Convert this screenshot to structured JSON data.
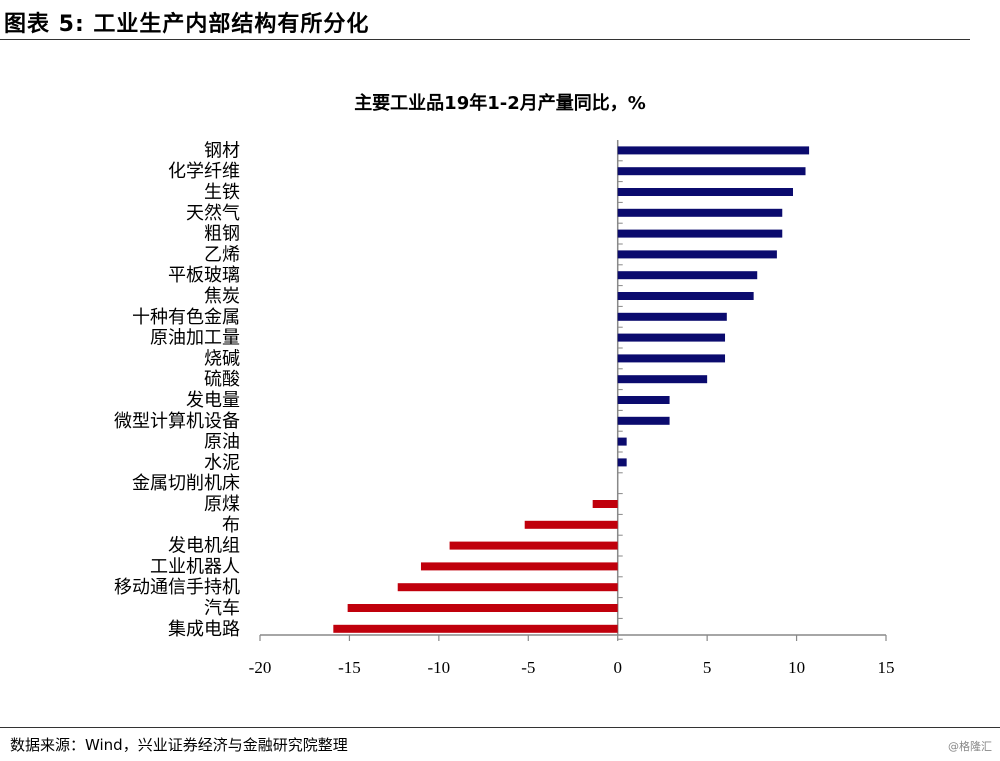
{
  "header": {
    "title": "图表 5:  工业生产内部结构有所分化"
  },
  "footer": {
    "source": "数据来源：Wind，兴业证券经济与金融研究院整理"
  },
  "watermark": "@格隆汇",
  "colors": {
    "positive": "#0b0b6e",
    "negative": "#c0000c",
    "axis": "#888888"
  },
  "chart_data": {
    "type": "bar",
    "orientation": "horizontal",
    "title": "主要工业品19年1-2月产量同比，%",
    "xlim": [
      -20,
      15
    ],
    "xticks": [
      -20,
      -15,
      -10,
      -5,
      0,
      5,
      10,
      15
    ],
    "grid": false,
    "categories": [
      "钢材",
      "化学纤维",
      "生铁",
      "天然气",
      "粗钢",
      "乙烯",
      "平板玻璃",
      "焦炭",
      "十种有色金属",
      "原油加工量",
      "烧碱",
      "硫酸",
      "发电量",
      "微型计算机设备",
      "原油",
      "水泥",
      "金属切削机床",
      "原煤",
      "布",
      "发电机组",
      "工业机器人",
      "移动通信手持机",
      "汽车",
      "集成电路"
    ],
    "values": [
      10.7,
      10.5,
      9.8,
      9.2,
      9.2,
      8.9,
      7.8,
      7.6,
      6.1,
      6.0,
      6.0,
      5.0,
      2.9,
      2.9,
      0.5,
      0.5,
      0.0,
      -1.4,
      -5.2,
      -9.4,
      -11.0,
      -12.3,
      -15.1,
      -15.9
    ]
  }
}
